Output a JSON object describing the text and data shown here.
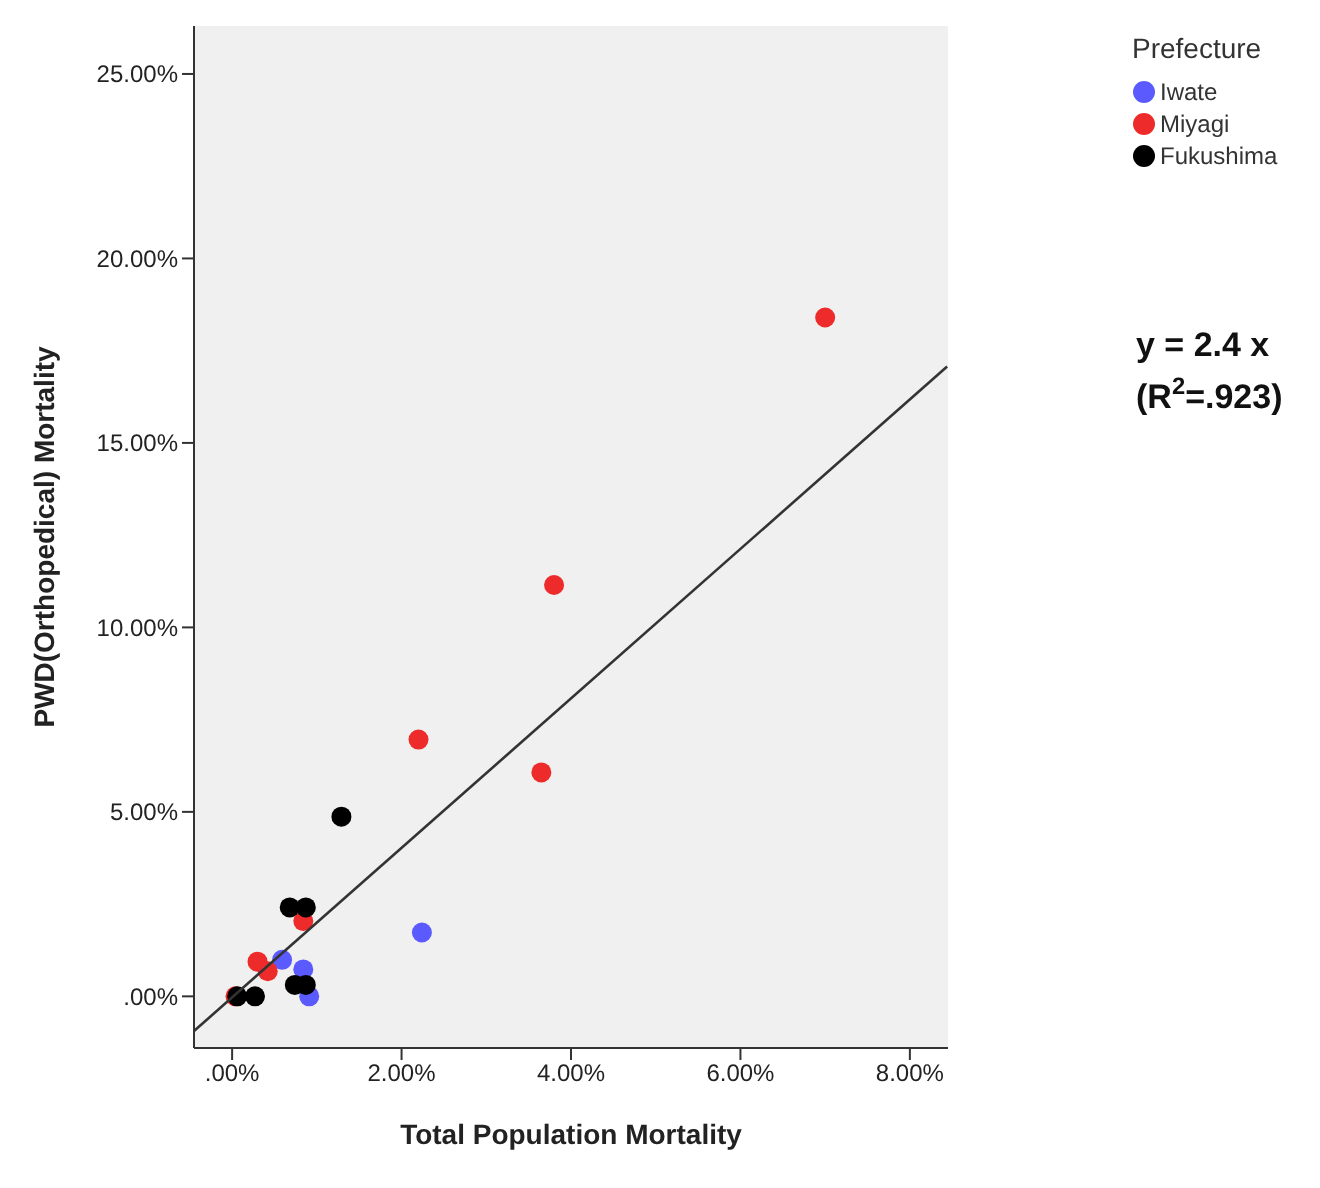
{
  "chart_data": {
    "type": "scatter",
    "xlabel": "Total Population Mortality",
    "ylabel": "PWD(Orthopedical) Mortality",
    "legend_title": "Prefecture",
    "legend": "top right",
    "marker": "circle",
    "xlim": [
      -0.45,
      8.45
    ],
    "xticks": [
      {
        "value": 0,
        "label": ".00%"
      },
      {
        "value": 2,
        "label": "2.00%"
      },
      {
        "value": 4,
        "label": "4.00%"
      },
      {
        "value": 6,
        "label": "6.00%"
      },
      {
        "value": 8,
        "label": "8.00%"
      }
    ],
    "ylim": [
      -1.4,
      26.3
    ],
    "yticks": [
      {
        "value": 0,
        "label": ".00%"
      },
      {
        "value": 5,
        "label": "5.00%"
      },
      {
        "value": 10,
        "label": "10.00%"
      },
      {
        "value": 15,
        "label": "15.00%"
      },
      {
        "value": 20,
        "label": "20.00%"
      },
      {
        "value": 25,
        "label": "25.00%"
      }
    ],
    "series": [
      {
        "name": "Iwate",
        "color": "#5a5aff",
        "x": [
          2.24,
          0.59,
          0.84,
          0.91
        ],
        "values": [
          1.73,
          0.99,
          0.73,
          0.0
        ]
      },
      {
        "name": "Miyagi",
        "color": "#ee2b2b",
        "x": [
          7.0,
          3.8,
          2.2,
          3.65,
          0.84,
          0.3,
          0.42,
          null,
          0.04
        ],
        "values": [
          18.4,
          11.15,
          6.96,
          6.07,
          2.04,
          0.94,
          0.68,
          null,
          0.0
        ]
      },
      {
        "name": "Fukushima",
        "color": "#000000",
        "x": [
          1.29,
          0.68,
          0.87,
          0.74,
          0.87,
          null,
          0.06,
          0.27
        ],
        "values": [
          4.87,
          2.41,
          2.41,
          0.31,
          0.31,
          null,
          0.0,
          0.0
        ]
      },
      {
        "type": "line",
        "marker": "none",
        "color": "#333333",
        "x": [
          -0.45,
          8.44
        ],
        "values": [
          -0.94,
          17.07
        ]
      }
    ],
    "annotations": [
      "y = 2.4 x",
      "(R$^{2}$=.923)"
    ]
  }
}
